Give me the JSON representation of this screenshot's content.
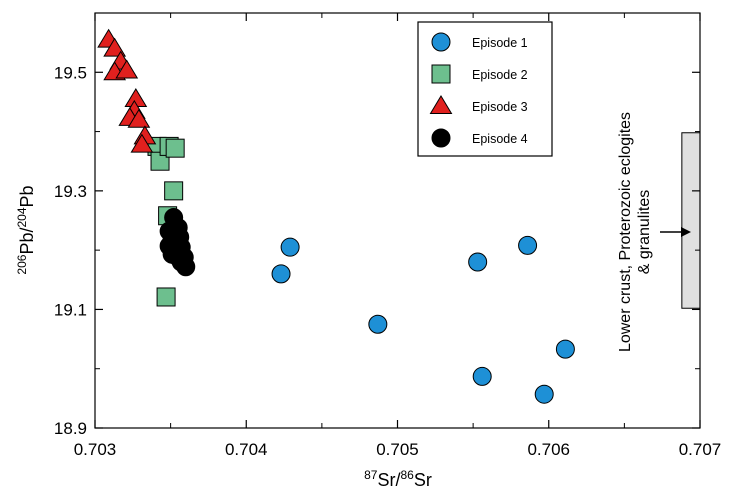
{
  "chart_data": {
    "type": "scatter",
    "xlabel": {
      "pre": "87",
      "a": "Sr/",
      "mid": "86",
      "b": "Sr"
    },
    "ylabel": {
      "pre": "206",
      "a": "Pb/",
      "mid": "204",
      "b": "Pb"
    },
    "xlim": [
      0.703,
      0.707
    ],
    "ylim": [
      18.9,
      19.6
    ],
    "x_ticks": [
      "0.703",
      "0.704",
      "0.705",
      "0.706",
      "0.707"
    ],
    "y_ticks": [
      "18.9",
      "19.1",
      "19.3",
      "19.5"
    ],
    "x_tick_values": [
      0.703,
      0.704,
      0.705,
      0.706,
      0.707
    ],
    "y_tick_values": [
      18.9,
      19.1,
      19.3,
      19.5
    ],
    "grid": false,
    "legend_position": "top-center",
    "series": [
      {
        "name": "Episode 1",
        "marker": "circle",
        "color": "#1e90d6",
        "points": [
          {
            "x": 0.70423,
            "y": 19.16
          },
          {
            "x": 0.70429,
            "y": 19.205
          },
          {
            "x": 0.70487,
            "y": 19.075
          },
          {
            "x": 0.70553,
            "y": 19.18
          },
          {
            "x": 0.70556,
            "y": 18.987
          },
          {
            "x": 0.70586,
            "y": 19.208
          },
          {
            "x": 0.70597,
            "y": 18.957
          },
          {
            "x": 0.70611,
            "y": 19.033
          }
        ]
      },
      {
        "name": "Episode 2",
        "marker": "square",
        "color": "#6dbf8e",
        "points": [
          {
            "x": 0.70341,
            "y": 19.375
          },
          {
            "x": 0.70343,
            "y": 19.35
          },
          {
            "x": 0.70349,
            "y": 19.375
          },
          {
            "x": 0.70353,
            "y": 19.372
          },
          {
            "x": 0.70352,
            "y": 19.3
          },
          {
            "x": 0.70348,
            "y": 19.258
          },
          {
            "x": 0.70347,
            "y": 19.121
          }
        ]
      },
      {
        "name": "Episode 3",
        "marker": "triangle",
        "color": "#e0201e",
        "points": [
          {
            "x": 0.70309,
            "y": 19.555
          },
          {
            "x": 0.70313,
            "y": 19.54
          },
          {
            "x": 0.70317,
            "y": 19.518
          },
          {
            "x": 0.70313,
            "y": 19.5
          },
          {
            "x": 0.70321,
            "y": 19.503
          },
          {
            "x": 0.70327,
            "y": 19.455
          },
          {
            "x": 0.70326,
            "y": 19.435
          },
          {
            "x": 0.70323,
            "y": 19.423
          },
          {
            "x": 0.70329,
            "y": 19.42
          },
          {
            "x": 0.70333,
            "y": 19.392
          },
          {
            "x": 0.70331,
            "y": 19.378
          }
        ]
      },
      {
        "name": "Episode 4",
        "marker": "circle",
        "color": "#000000",
        "points": [
          {
            "x": 0.70352,
            "y": 19.255
          },
          {
            "x": 0.70355,
            "y": 19.238
          },
          {
            "x": 0.70349,
            "y": 19.232
          },
          {
            "x": 0.70351,
            "y": 19.218
          },
          {
            "x": 0.70356,
            "y": 19.222
          },
          {
            "x": 0.70349,
            "y": 19.207
          },
          {
            "x": 0.70353,
            "y": 19.2
          },
          {
            "x": 0.70357,
            "y": 19.205
          },
          {
            "x": 0.70351,
            "y": 19.193
          },
          {
            "x": 0.70355,
            "y": 19.188
          },
          {
            "x": 0.70359,
            "y": 19.188
          },
          {
            "x": 0.70357,
            "y": 19.18
          },
          {
            "x": 0.7036,
            "y": 19.172
          }
        ]
      }
    ],
    "reference_range": {
      "x_from": 0.70688,
      "x_to": 0.707,
      "y_from": 19.102,
      "y_to": 19.398,
      "color": "#e0e0e0",
      "label_lines": [
        "Lower crust, Proterozoic eclogites",
        "& granulites"
      ]
    }
  }
}
